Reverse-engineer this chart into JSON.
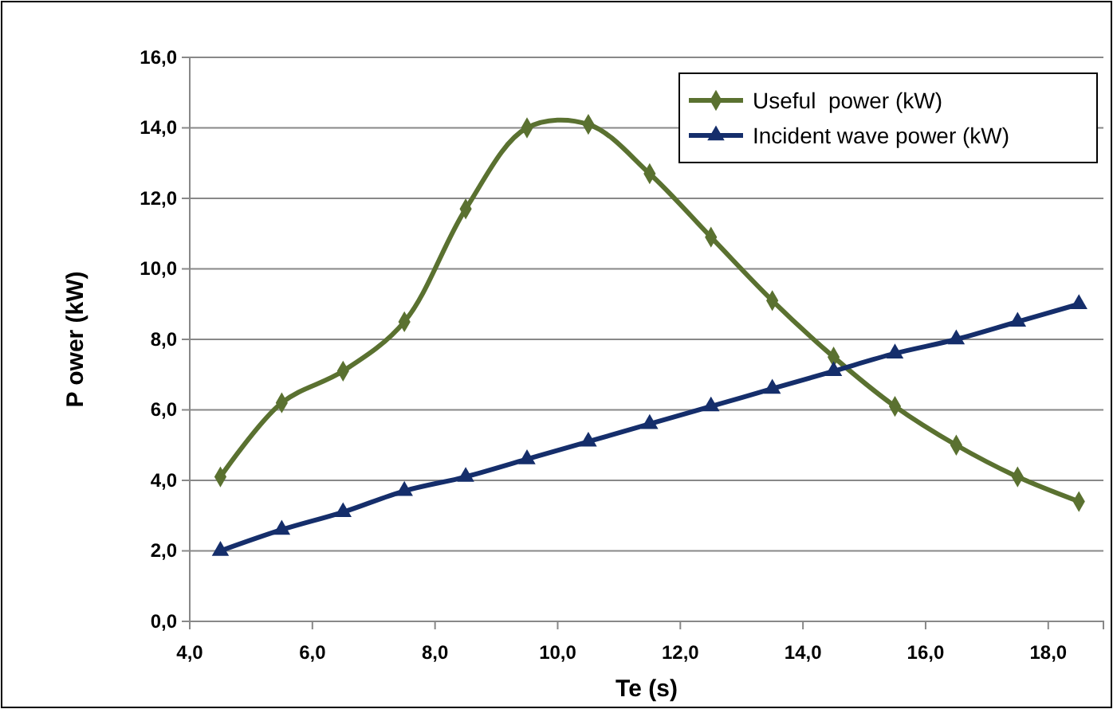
{
  "chart_data": {
    "type": "line",
    "xlabel": "Te (s)",
    "ylabel": "P ower (kW)",
    "x": [
      4.5,
      5.5,
      6.5,
      7.5,
      8.5,
      9.5,
      10.5,
      11.5,
      12.5,
      13.5,
      14.5,
      15.5,
      16.5,
      17.5,
      18.5
    ],
    "series": [
      {
        "name": "Useful  power (kW)",
        "color": "#5a7130",
        "marker": "diamond",
        "values": [
          4.1,
          6.2,
          7.1,
          8.5,
          11.7,
          14.0,
          14.1,
          12.7,
          10.9,
          9.1,
          7.5,
          6.1,
          5.0,
          4.1,
          3.4
        ]
      },
      {
        "name": "Incident wave power (kW)",
        "color": "#152e6b",
        "marker": "triangle",
        "values": [
          2.0,
          2.6,
          3.1,
          3.7,
          4.1,
          4.6,
          5.1,
          5.6,
          6.1,
          6.6,
          7.1,
          7.6,
          8.0,
          8.5,
          9.0
        ]
      }
    ],
    "xlim": [
      4,
      18.9
    ],
    "xticks": [
      {
        "value": 4,
        "label": "4,0"
      },
      {
        "value": 6,
        "label": "6,0"
      },
      {
        "value": 8,
        "label": "8,0"
      },
      {
        "value": 10,
        "label": "10,0"
      },
      {
        "value": 12,
        "label": "12,0"
      },
      {
        "value": 14,
        "label": "14,0"
      },
      {
        "value": 16,
        "label": "16,0"
      },
      {
        "value": 18,
        "label": "18,0"
      }
    ],
    "ylim": [
      0,
      16
    ],
    "yticks": [
      {
        "value": 0,
        "label": "0,0"
      },
      {
        "value": 2,
        "label": "2,0"
      },
      {
        "value": 4,
        "label": "4,0"
      },
      {
        "value": 6,
        "label": "6,0"
      },
      {
        "value": 8,
        "label": "8,0"
      },
      {
        "value": 10,
        "label": "10,0"
      },
      {
        "value": 12,
        "label": "12,0"
      },
      {
        "value": 14,
        "label": "14,0"
      },
      {
        "value": 16,
        "label": "16,0"
      }
    ],
    "grid": "y",
    "legend": "top right",
    "line_style": "solid"
  }
}
